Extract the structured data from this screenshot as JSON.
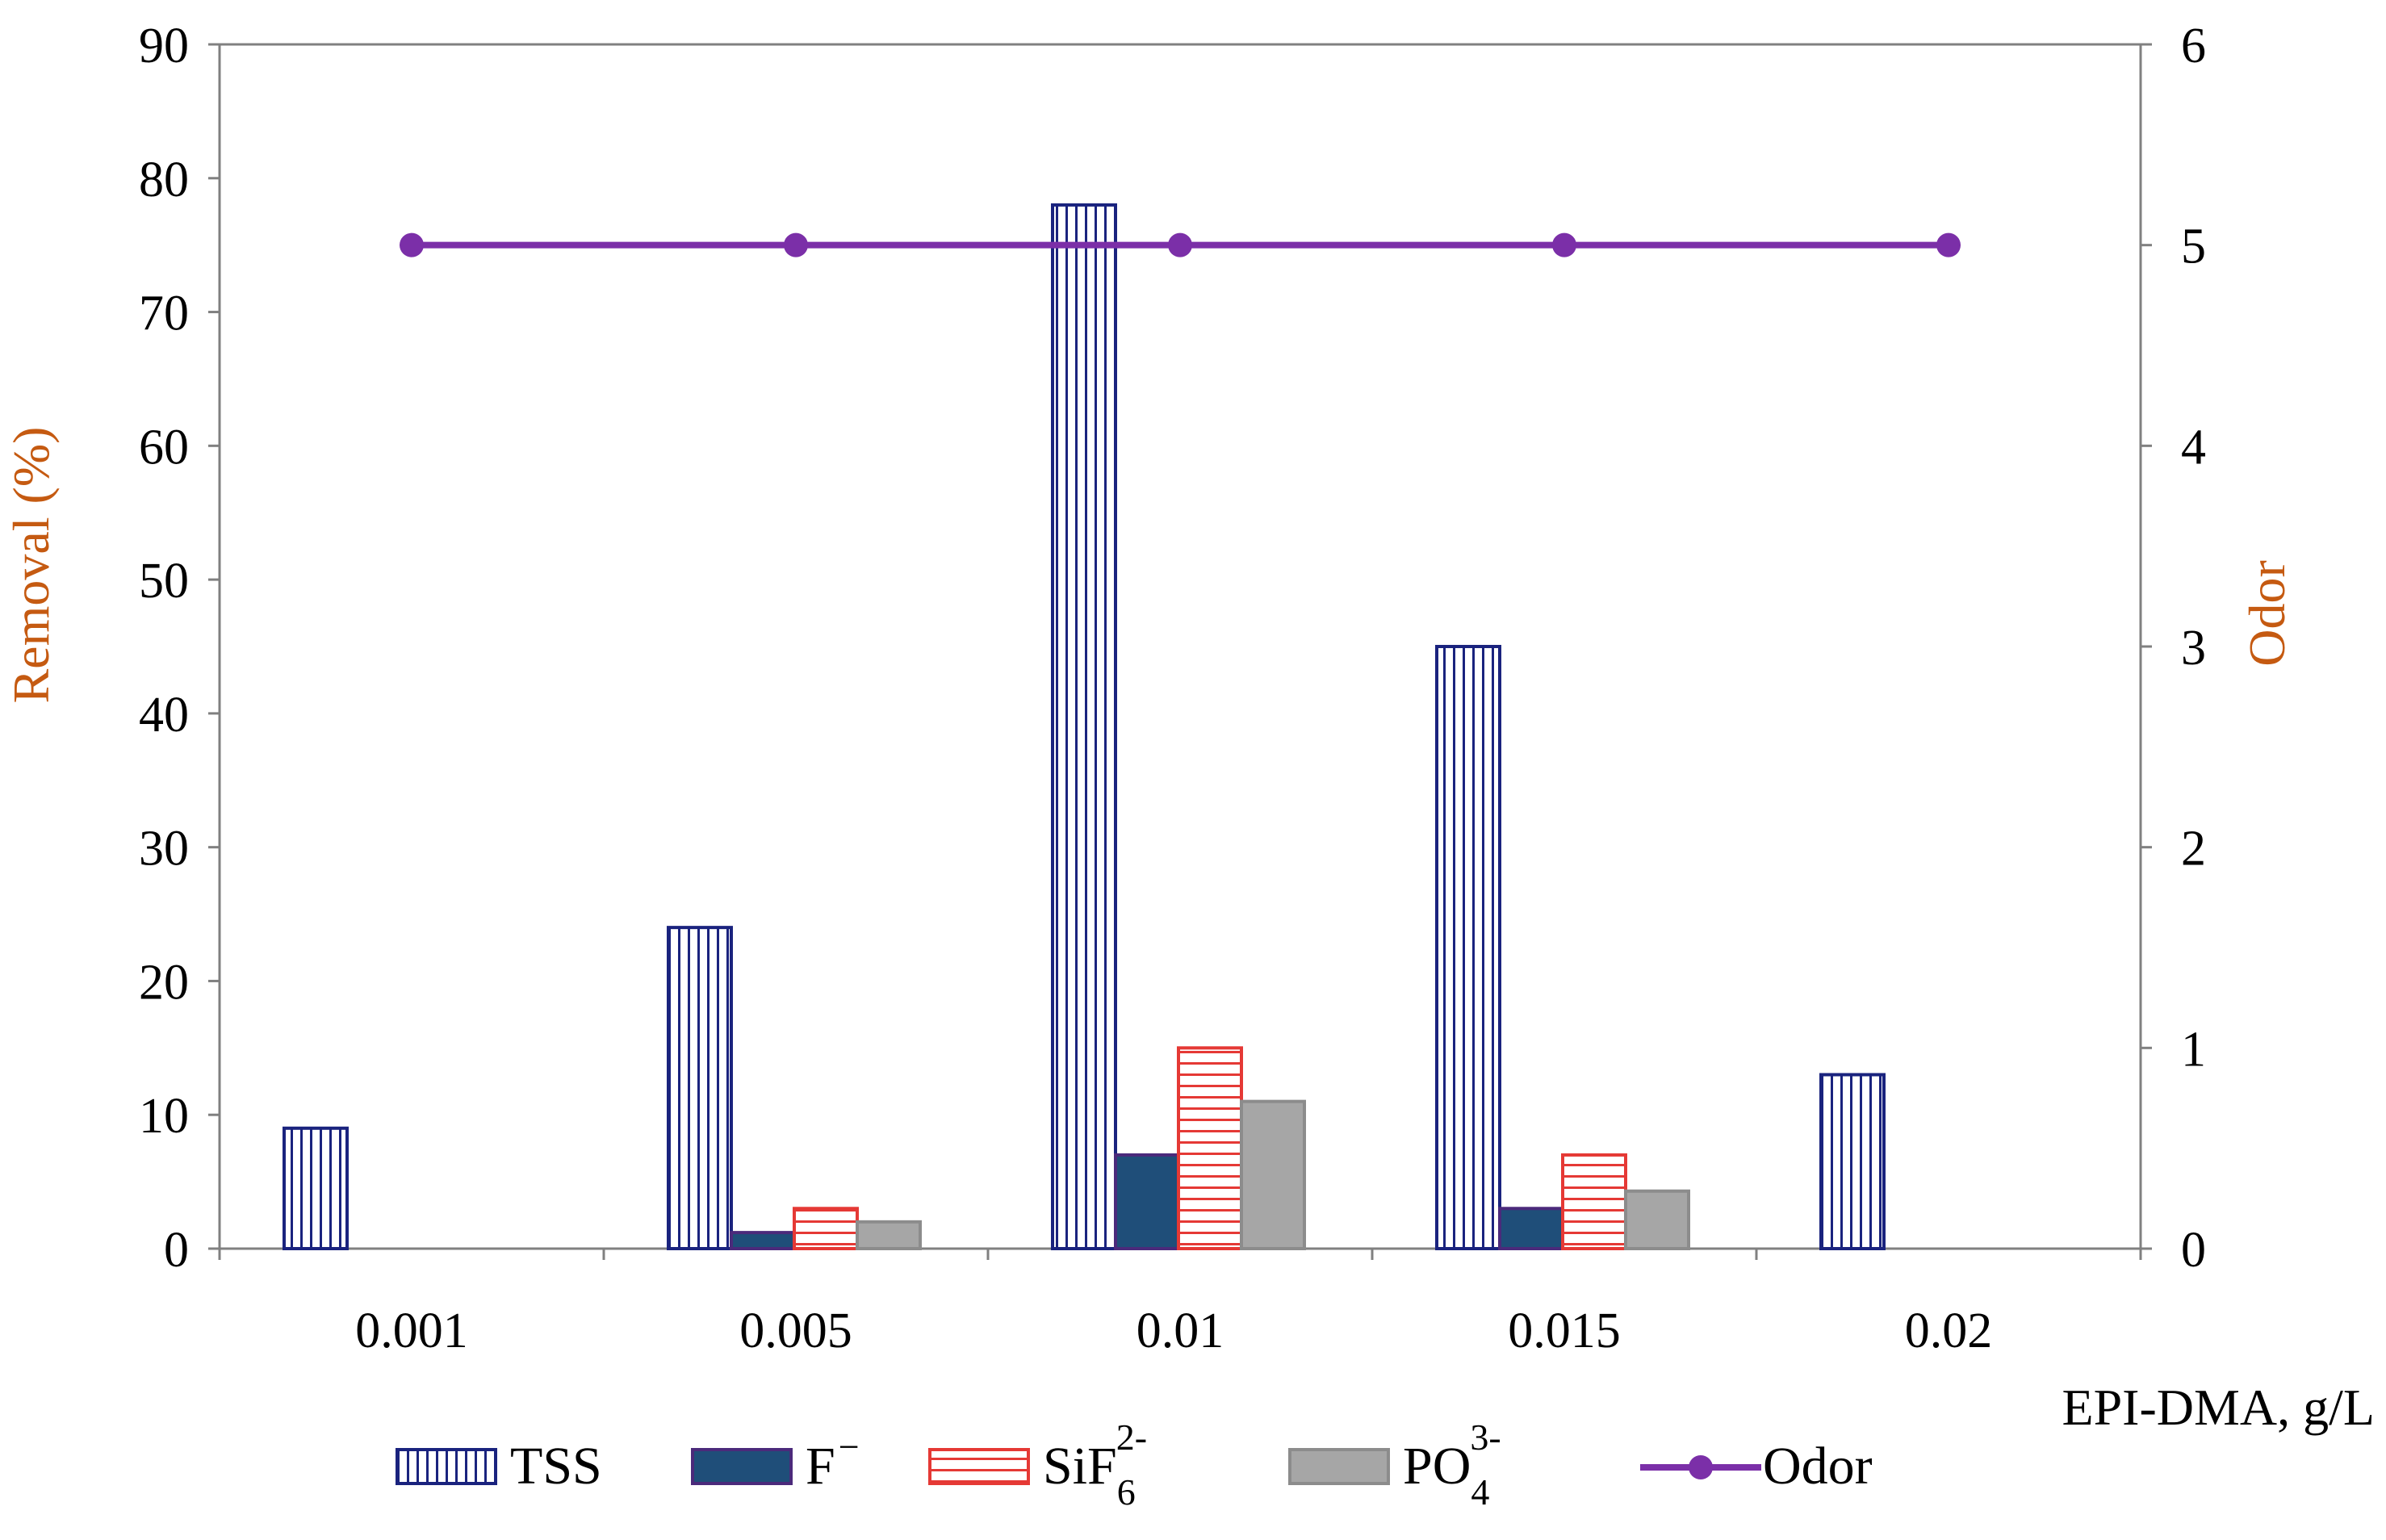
{
  "chart_data": {
    "type": "bar",
    "categories": [
      "0.001",
      "0.005",
      "0.01",
      "0.015",
      "0.02"
    ],
    "series": [
      {
        "name": "TSS",
        "values": [
          9,
          24,
          78,
          45,
          13
        ],
        "axis": "left",
        "pattern": "vertical-stripes",
        "color": "#1a237e"
      },
      {
        "name": "F",
        "sup": "−",
        "values": [
          0,
          1.2,
          7,
          3,
          0
        ],
        "axis": "left",
        "pattern": "solid",
        "color": "#1f4e79"
      },
      {
        "name": "SiF",
        "sub": "6",
        "sup": "2-",
        "values": [
          0,
          3,
          15,
          7,
          0
        ],
        "axis": "left",
        "pattern": "horizontal-stripes",
        "color": "#e53935"
      },
      {
        "name": "PO",
        "sub": "4",
        "sup": "3-",
        "values": [
          0,
          2,
          11,
          4.3,
          0
        ],
        "axis": "left",
        "pattern": "solid",
        "color": "#a6a6a6"
      }
    ],
    "line_series": {
      "name": "Odor",
      "values": [
        5,
        5,
        5,
        5,
        5
      ],
      "axis": "right",
      "color": "#7b2fa8"
    },
    "xlabel": "EPI-DMA, g/L",
    "ylabel": "Removal (%)",
    "y2label": "Odor",
    "ylim": [
      0,
      90
    ],
    "yticks": [
      "0",
      "10",
      "20",
      "30",
      "40",
      "50",
      "60",
      "70",
      "80",
      "90"
    ],
    "y2lim": [
      0,
      6
    ],
    "y2ticks": [
      "0",
      "1",
      "2",
      "3",
      "4",
      "5",
      "6"
    ],
    "legend_position": "bottom",
    "axis_label_color": "#c55a11"
  }
}
